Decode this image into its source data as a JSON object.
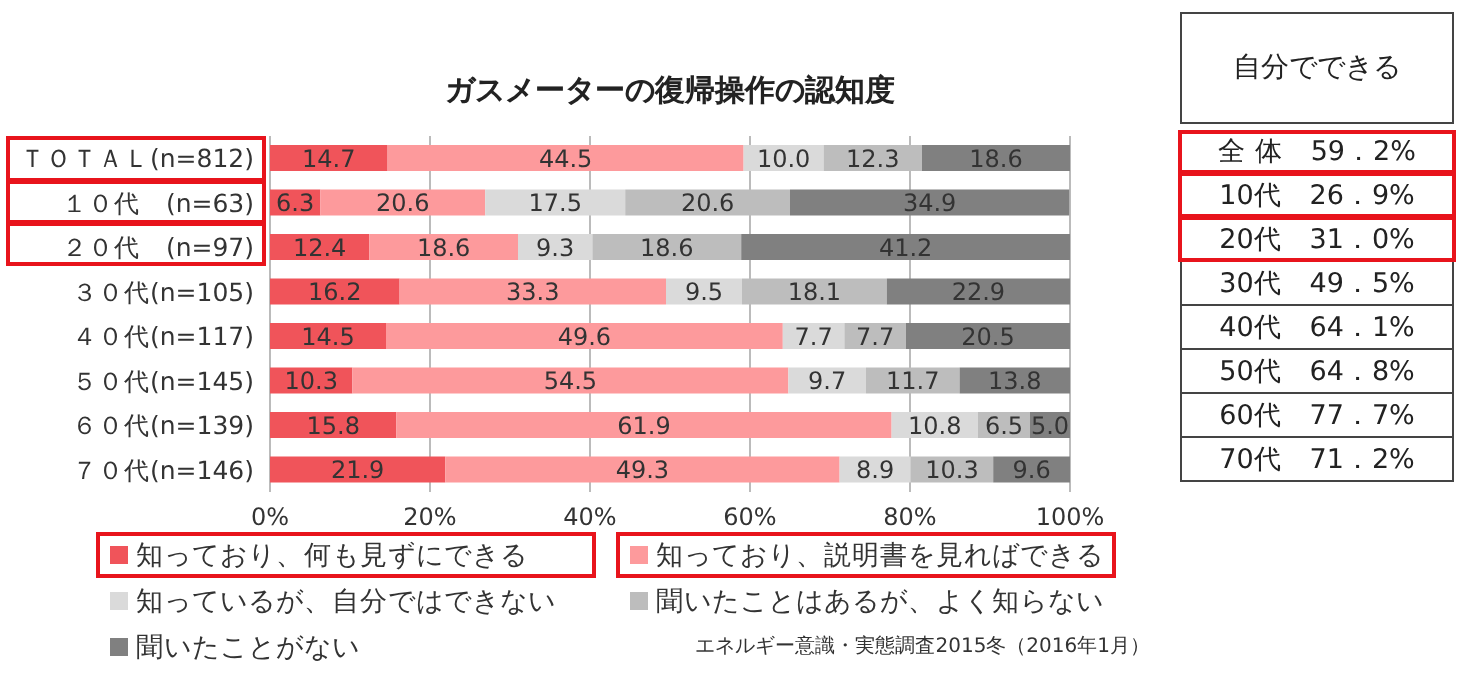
{
  "chart_data": [
    {
      "type": "bar",
      "orientation": "horizontal",
      "stacked": true,
      "title": "ガスメーターの復帰操作の認知度",
      "categories": [
        "ＴＯＴＡＬ(n=812)",
        "１０代　(n=63)",
        "２０代　(n=97)",
        "３０代(n=105)",
        "４０代(n=117)",
        "５０代(n=145)",
        "６０代(n=139)",
        "７０代(n=146)"
      ],
      "series": [
        {
          "name": "知っており、何も見ずにできる",
          "color": "#f0545a",
          "values": [
            14.7,
            6.3,
            12.4,
            16.2,
            14.5,
            10.3,
            15.8,
            21.9
          ],
          "value_labels": [
            "14.7",
            "6.3",
            "12.4",
            "16.2",
            "14.5",
            "10.3",
            "15.8",
            "21.9"
          ]
        },
        {
          "name": "知っており、説明書を見ればできる",
          "color": "#fd9a9c",
          "values": [
            44.5,
            20.6,
            18.6,
            33.3,
            49.6,
            54.5,
            61.9,
            49.3
          ],
          "value_labels": [
            "44.5",
            "20.6",
            "18.6",
            "33.3",
            "49.6",
            "54.5",
            "61.9",
            "49.3"
          ]
        },
        {
          "name": "知っているが、自分ではできない",
          "color": "#dadada",
          "values": [
            10.0,
            17.5,
            9.3,
            9.5,
            7.7,
            9.7,
            10.8,
            8.9
          ],
          "value_labels": [
            "10.0",
            "17.5",
            "9.3",
            "9.5",
            "7.7",
            "9.7",
            "10.8",
            "8.9"
          ]
        },
        {
          "name": "聞いたことはあるが、よく知らない",
          "color": "#bdbdbd",
          "values": [
            12.3,
            20.6,
            18.6,
            18.1,
            7.7,
            11.7,
            6.5,
            10.3
          ],
          "value_labels": [
            "12.3",
            "20.6",
            "18.6",
            "18.1",
            "7.7",
            "11.7",
            "6.5",
            "10.3"
          ]
        },
        {
          "name": "聞いたことがない",
          "color": "#808080",
          "values": [
            18.6,
            34.9,
            41.2,
            22.9,
            20.5,
            13.8,
            5.0,
            9.6
          ],
          "value_labels": [
            "18.6",
            "34.9",
            "41.2",
            "22.9",
            "20.5",
            "13.8",
            "5.0",
            "9.6"
          ]
        }
      ],
      "xlim": [
        0,
        100
      ],
      "xticks": [
        {
          "value": 0,
          "label": "0%"
        },
        {
          "value": 20,
          "label": "20%"
        },
        {
          "value": 40,
          "label": "40%"
        },
        {
          "value": 60,
          "label": "60%"
        },
        {
          "value": 80,
          "label": "80%"
        },
        {
          "value": 100,
          "label": "100%"
        }
      ],
      "grid": "x",
      "legend": "bottom",
      "annotations": [
        "エネルギー意識・実態調査2015冬（2016年1月）"
      ]
    },
    {
      "type": "other",
      "title": "自分でできる",
      "annotations": [
        "全 体　59．2%",
        "10代　26．9%",
        "20代　31．0%",
        "30代　49．5%",
        "40代　64．1%",
        "50代　64．8%",
        "60代　77．7%",
        "70代　71．2%"
      ]
    }
  ]
}
